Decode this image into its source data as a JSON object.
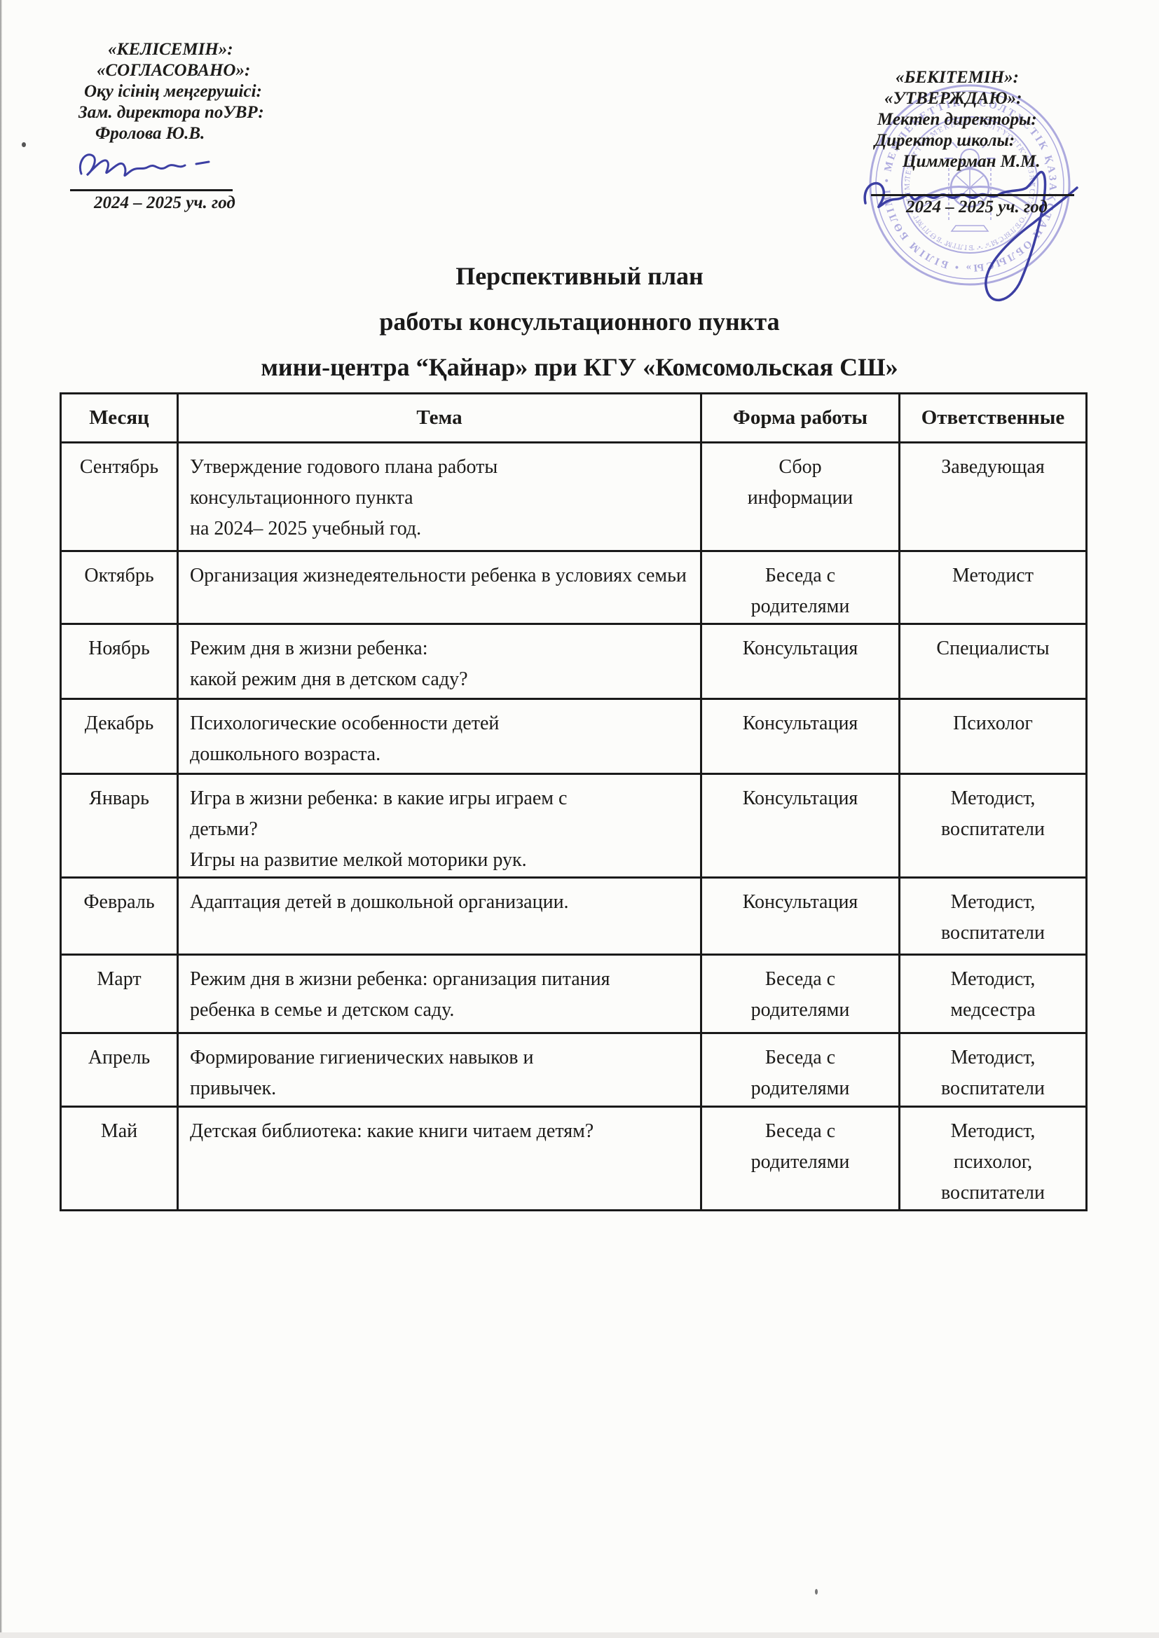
{
  "approvals": {
    "left": {
      "line1": "«КЕЛІСЕМІН»:",
      "line2": "«СОГЛАСОВАНО»:",
      "line3": "Оқу ісінің меңгерушісі:",
      "line4": "Зам. директора поУВР:",
      "name": "Фролова Ю.В.",
      "year": "2024 – 2025  уч. год"
    },
    "right": {
      "line1": "«БЕКІТЕМІН»:",
      "line2": "«УТВЕРЖДАЮ»:",
      "line3": "Мектеп директоры:",
      "line4": "Директор школы:",
      "name": "Циммерман М.М.",
      "year": "2024 – 2025  уч. год"
    }
  },
  "title": {
    "line1": "Перспективный план",
    "line2": "работы консультационного пункта",
    "line3": "мини-центра “Қайнар» при КГУ «Комсомольская СШ»"
  },
  "stamp": {
    "ring_text": "«СОЛТҮСТІК ҚАЗАҚСТАН ОБЛЫСЫ» • БІЛІМ БӨЛІМІ • МЕМЛЕКЕТТІК МЕКЕМЕСІ •",
    "ink_color": "#6e68c8",
    "signature_ink_color": "#3c3fa3"
  },
  "table": {
    "headers": [
      "Месяц",
      "Тема",
      "Форма работы",
      "Ответственные"
    ],
    "rows": [
      {
        "month": "Сентябрь",
        "topic": "Утверждение годового плана работы\nконсультационного пункта\nна 2024– 2025 учебный год.",
        "form": "Сбор\nинформации",
        "resp": "Заведующая",
        "justify": false
      },
      {
        "month": "Октябрь",
        "topic": "Организация жизнедеятельности ребенка в условиях семьи",
        "form": "Беседа с\nродителями",
        "resp": "Методист",
        "justify": true
      },
      {
        "month": "Ноябрь",
        "topic": "Режим дня в жизни ребенка:\nкакой режим дня в детском саду?",
        "form": "Консультация",
        "resp": "Специалисты",
        "justify": false
      },
      {
        "month": "Декабрь",
        "topic": "Психологические особенности детей\nдошкольного возраста.",
        "form": "Консультация",
        "resp": "Психолог",
        "justify": false
      },
      {
        "month": "Январь",
        "topic": "Игра в жизни ребенка: в какие игры играем с\nдетьми?\nИгры на развитие мелкой моторики рук.",
        "form": "Консультация",
        "resp": "Методист,\nвоспитатели",
        "justify": false
      },
      {
        "month": "Февраль",
        "topic": "Адаптация детей в дошкольной организации.",
        "form": "Консультация",
        "resp": "Методист,\nвоспитатели",
        "justify": false
      },
      {
        "month": "Март",
        "topic": "Режим дня в жизни ребенка: организация питания\nребенка в семье и детском саду.",
        "form": "Беседа с\nродителями",
        "resp": "Методист,\nмедсестра",
        "justify": false
      },
      {
        "month": "Апрель",
        "topic": "Формирование гигиенических навыков и\nпривычек.",
        "form": "Беседа с\nродителями",
        "resp": "Методист,\nвоспитатели",
        "justify": false
      },
      {
        "month": "Май",
        "topic": "Детская библиотека: какие книги читаем детям?",
        "form": "Беседа с\nродителями",
        "resp": "Методист,\nпсихолог,\nвоспитатели",
        "justify": false
      }
    ]
  }
}
